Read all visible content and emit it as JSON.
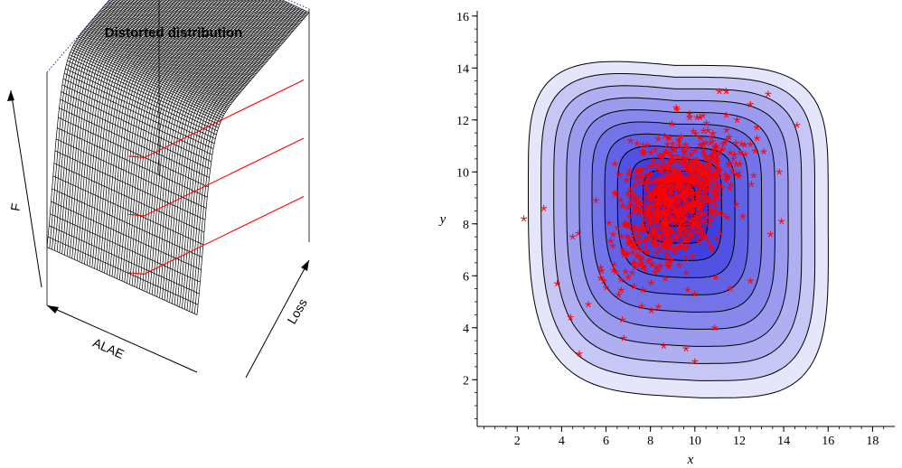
{
  "chart_data": [
    {
      "type": "surface3d",
      "title": "Distorted distribution",
      "axes": {
        "x_label": "ALAE",
        "y_label": "Loss",
        "z_label": "F"
      },
      "colors": {
        "mesh": "#000000",
        "slice_lines": "#ff0000",
        "box": "#000000",
        "bbox_dotted": "#1a1a8a"
      },
      "profile": {
        "shape": "steep sigmoid step rising from 0 to 1"
      },
      "slice_lines": [
        {
          "level": 0.25
        },
        {
          "level": 0.5
        },
        {
          "level": 0.75
        }
      ]
    },
    {
      "type": "contour_scatter",
      "xlabel": "x",
      "ylabel": "y",
      "xlim": [
        0.2,
        19
      ],
      "ylim": [
        0.2,
        16.2
      ],
      "xticks": [
        2,
        4,
        6,
        8,
        10,
        12,
        14,
        16,
        18
      ],
      "yticks": [
        2,
        4,
        6,
        8,
        10,
        12,
        14,
        16
      ],
      "grid": false,
      "legend": "none",
      "colors": {
        "contour_line": "#000000",
        "fill_low": "#e6e6fa",
        "fill_high": "#2020dd",
        "points": "#ff0000"
      },
      "contours": {
        "center": [
          9.1,
          8.9
        ],
        "shape": "rounded triangle skewed left",
        "levels": 11
      },
      "scatter": {
        "marker": "asterisk",
        "count_approx": 900,
        "cluster": {
          "center": [
            9.1,
            8.9
          ],
          "spread": [
            1.25,
            1.35
          ],
          "correlation": 0.45
        },
        "outliers": [
          [
            2.3,
            8.2
          ],
          [
            3.2,
            8.6
          ],
          [
            4.8,
            3.0
          ],
          [
            4.4,
            4.4
          ],
          [
            3.8,
            5.7
          ],
          [
            5.9,
            5.8
          ],
          [
            5.2,
            4.9
          ],
          [
            6.8,
            3.6
          ],
          [
            8.6,
            3.3
          ],
          [
            9.6,
            3.2
          ],
          [
            10.0,
            2.7
          ],
          [
            11.1,
            13.1
          ],
          [
            12.5,
            12.6
          ],
          [
            13.3,
            13.0
          ],
          [
            14.6,
            11.8
          ],
          [
            13.8,
            10.0
          ],
          [
            13.9,
            8.1
          ],
          [
            13.4,
            7.6
          ],
          [
            12.5,
            5.8
          ],
          [
            11.6,
            5.5
          ],
          [
            10.9,
            4.0
          ],
          [
            4.5,
            7.5
          ],
          [
            6.4,
            10.3
          ],
          [
            7.1,
            11.2
          ],
          [
            9.2,
            12.4
          ],
          [
            10.1,
            12.1
          ],
          [
            11.9,
            12.0
          ],
          [
            12.8,
            11.3
          ]
        ]
      }
    }
  ]
}
